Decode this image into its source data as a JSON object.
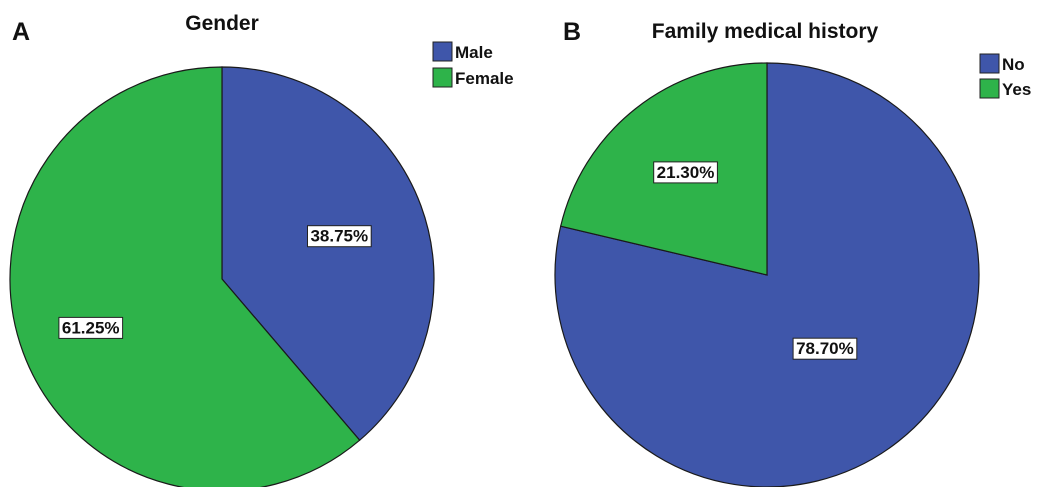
{
  "chart_data": [
    {
      "type": "pie",
      "panel": "A",
      "title": "Gender",
      "categories": [
        "Male",
        "Female"
      ],
      "values": [
        38.75,
        61.25
      ],
      "labels": [
        "38.75%",
        "61.25%"
      ],
      "colors": [
        "#3f56aa",
        "#2eb34a"
      ],
      "legend": [
        "Male",
        "Female"
      ],
      "legend_position": "top-right"
    },
    {
      "type": "pie",
      "panel": "B",
      "title": "Family medical history",
      "categories": [
        "No",
        "Yes"
      ],
      "values": [
        78.7,
        21.3
      ],
      "labels": [
        "78.70%",
        "21.30%"
      ],
      "colors": [
        "#3f56aa",
        "#2eb34a"
      ],
      "legend": [
        "No",
        "Yes"
      ],
      "legend_position": "top-right"
    }
  ]
}
